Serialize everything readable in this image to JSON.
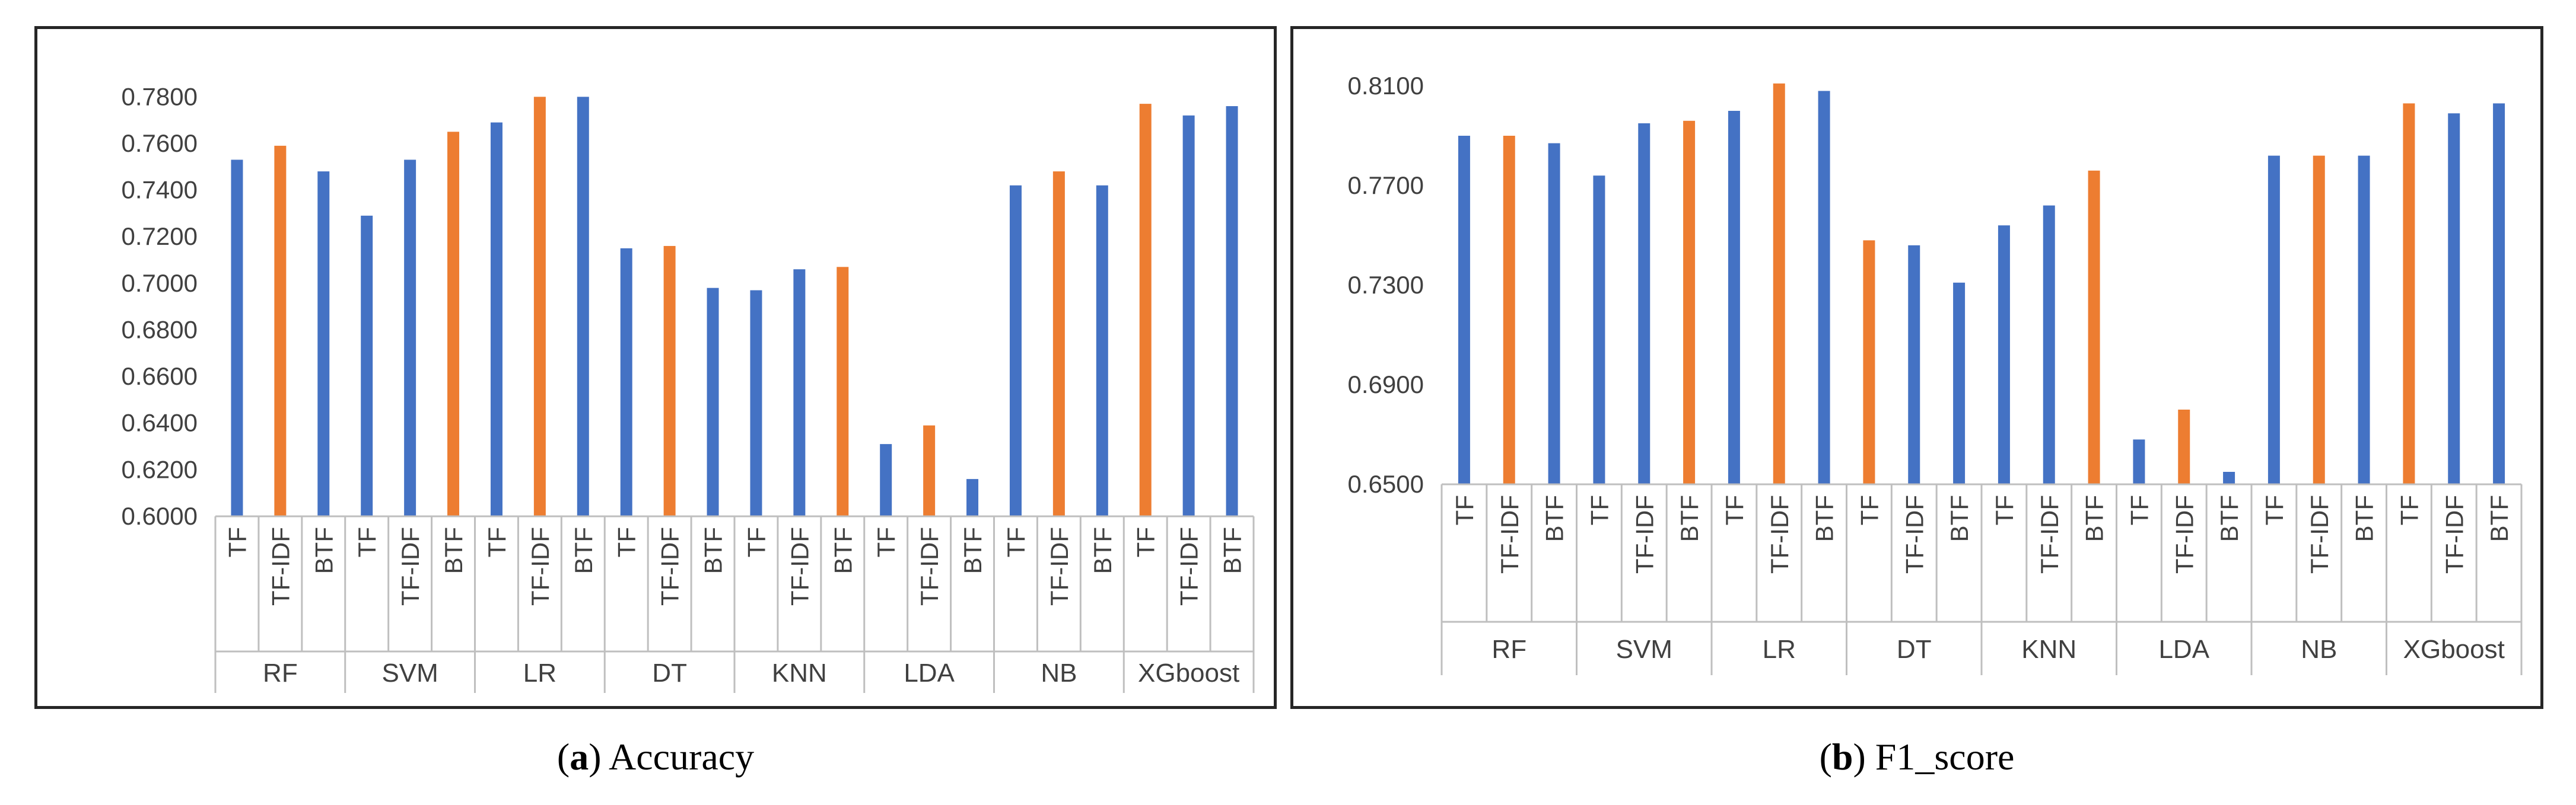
{
  "colors": {
    "blue": "#4472C4",
    "orange": "#ED7D31",
    "axis": "#BFBFBF",
    "text": "#404040"
  },
  "chart_data": [
    {
      "type": "bar",
      "caption_letter": "a",
      "caption_text": "Accuracy",
      "ylim": [
        0.6,
        0.79
      ],
      "yticks": [
        "0.6000",
        "0.6200",
        "0.6400",
        "0.6600",
        "0.6800",
        "0.7000",
        "0.7200",
        "0.7400",
        "0.7600",
        "0.7800"
      ],
      "groups": [
        "RF",
        "SVM",
        "LR",
        "DT",
        "KNN",
        "LDA",
        "NB",
        "XGboost"
      ],
      "subcategories": [
        "TF",
        "TF-IDF",
        "BTF"
      ],
      "values": [
        [
          0.753,
          0.759,
          0.748
        ],
        [
          0.729,
          0.753,
          0.765
        ],
        [
          0.769,
          0.78,
          0.78
        ],
        [
          0.715,
          0.716,
          0.698
        ],
        [
          0.697,
          0.706,
          0.707
        ],
        [
          0.631,
          0.639,
          0.616
        ],
        [
          0.742,
          0.748,
          0.742
        ],
        [
          0.777,
          0.772,
          0.776
        ]
      ],
      "highlight": [
        [
          false,
          true,
          false
        ],
        [
          false,
          false,
          true
        ],
        [
          false,
          true,
          false
        ],
        [
          false,
          true,
          false
        ],
        [
          false,
          false,
          true
        ],
        [
          false,
          true,
          false
        ],
        [
          false,
          true,
          false
        ],
        [
          true,
          false,
          false
        ]
      ]
    },
    {
      "type": "bar",
      "caption_letter": "b",
      "caption_text": "F1_score",
      "ylim": [
        0.65,
        0.815
      ],
      "yticks": [
        "0.6500",
        "0.6900",
        "0.7300",
        "0.7700",
        "0.8100"
      ],
      "groups": [
        "RF",
        "SVM",
        "LR",
        "DT",
        "KNN",
        "LDA",
        "NB",
        "XGboost"
      ],
      "subcategories": [
        "TF",
        "TF-IDF",
        "BTF"
      ],
      "values": [
        [
          0.79,
          0.79,
          0.787
        ],
        [
          0.774,
          0.795,
          0.796
        ],
        [
          0.8,
          0.811,
          0.808
        ],
        [
          0.748,
          0.746,
          0.731
        ],
        [
          0.754,
          0.762,
          0.776
        ],
        [
          0.668,
          0.68,
          0.655
        ],
        [
          0.782,
          0.782,
          0.782
        ],
        [
          0.803,
          0.799,
          0.803
        ]
      ],
      "highlight": [
        [
          false,
          true,
          false
        ],
        [
          false,
          false,
          true
        ],
        [
          false,
          true,
          false
        ],
        [
          true,
          false,
          false
        ],
        [
          false,
          false,
          true
        ],
        [
          false,
          true,
          false
        ],
        [
          false,
          true,
          false
        ],
        [
          true,
          false,
          false
        ]
      ]
    }
  ]
}
